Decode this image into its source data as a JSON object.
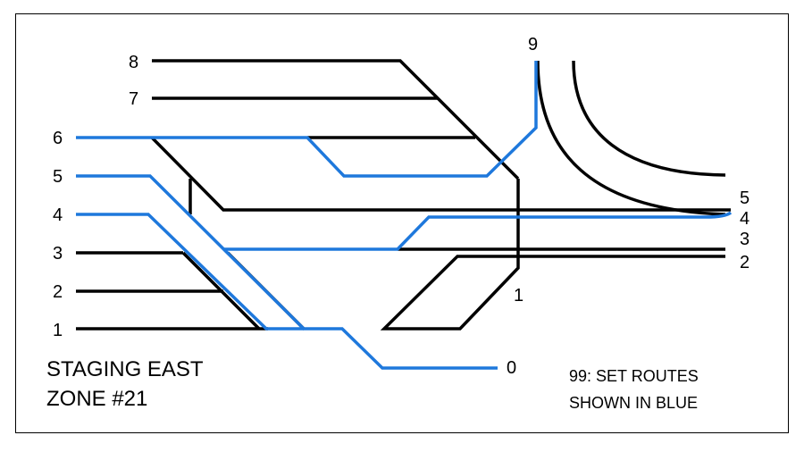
{
  "panel": {
    "title_line1": "STAGING EAST",
    "title_line2": "ZONE #21",
    "note_line1": "99: SET ROUTES",
    "note_line2": "SHOWN IN BLUE"
  },
  "left_tracks": [
    "8",
    "7",
    "6",
    "5",
    "4",
    "3",
    "2",
    "1"
  ],
  "right_tracks": [
    "5",
    "4",
    "3",
    "2"
  ],
  "other_tracks": {
    "track_9": "9",
    "track_1_turnout": "1",
    "track_0": "0"
  },
  "colors": {
    "route_set": "#1e78dc",
    "track": "#000000",
    "border": "#000000",
    "background": "#ffffff"
  }
}
